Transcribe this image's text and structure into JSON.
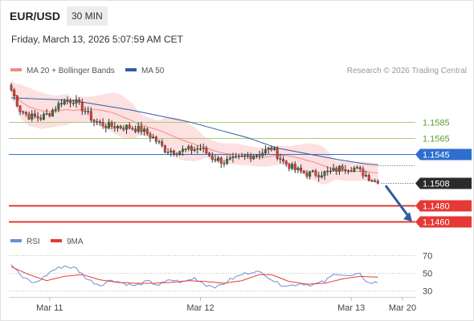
{
  "header": {
    "pair": "EUR/USD",
    "timeframe": "30 MIN",
    "datetime": "Friday, March 13, 2026 5:07:59 AM CET",
    "credit": "Research © 2026 Trading Central"
  },
  "colors": {
    "bull": "#2e7d32",
    "bear": "#e53935",
    "ma20": "#f48a84",
    "band": "#fde0e0",
    "ma50": "#2f5da6",
    "resistance": "#a5cf7a",
    "pivot": "#2f6ed1",
    "support": "#e53935",
    "arrow": "#2b5ea8",
    "rsi": "#6b8fd6",
    "rsi_ma": "#e53935"
  },
  "chart_data": [
    {
      "type": "candlestick",
      "title": "",
      "legend": [
        {
          "name": "MA 20 + Bollinger Bands",
          "color": "#f48a84"
        },
        {
          "name": "MA 50",
          "color": "#2f5da6"
        }
      ],
      "ylim": [
        1.1448,
        1.164
      ],
      "x_ticks": [
        "Mar 11",
        "Mar 12",
        "Mar 13",
        "Mar 20"
      ],
      "bars_per_day": 48,
      "close_path_points": [
        [
          0,
          1.1625
        ],
        [
          3,
          1.16
        ],
        [
          6,
          1.1592
        ],
        [
          10,
          1.159
        ],
        [
          13,
          1.1596
        ],
        [
          17,
          1.161
        ],
        [
          21,
          1.1612
        ],
        [
          24,
          1.1602
        ],
        [
          28,
          1.1586
        ],
        [
          32,
          1.158
        ],
        [
          36,
          1.1579
        ],
        [
          40,
          1.1578
        ],
        [
          44,
          1.1575
        ],
        [
          48,
          1.1565
        ],
        [
          52,
          1.155
        ],
        [
          56,
          1.1548
        ],
        [
          60,
          1.155
        ],
        [
          64,
          1.1552
        ],
        [
          68,
          1.154
        ],
        [
          72,
          1.1535
        ],
        [
          76,
          1.1538
        ],
        [
          80,
          1.1542
        ],
        [
          84,
          1.1545
        ],
        [
          88,
          1.1552
        ],
        [
          92,
          1.1535
        ],
        [
          96,
          1.1525
        ],
        [
          100,
          1.152
        ],
        [
          104,
          1.152
        ],
        [
          108,
          1.1522
        ],
        [
          112,
          1.1528
        ],
        [
          116,
          1.1527
        ],
        [
          120,
          1.1518
        ],
        [
          124,
          1.1508
        ]
      ],
      "ma50_points": [
        [
          0,
          1.1615
        ],
        [
          20,
          1.1612
        ],
        [
          40,
          1.16
        ],
        [
          60,
          1.1585
        ],
        [
          80,
          1.1565
        ],
        [
          90,
          1.1552
        ],
        [
          100,
          1.1545
        ],
        [
          110,
          1.1538
        ],
        [
          120,
          1.1532
        ],
        [
          124,
          1.1531
        ]
      ],
      "levels": [
        {
          "label": "1.1585",
          "value": 1.1585,
          "kind": "resistance"
        },
        {
          "label": "1.1565",
          "value": 1.1565,
          "kind": "resistance"
        },
        {
          "label": "1.1545",
          "value": 1.1545,
          "kind": "pivot"
        },
        {
          "label": "1.1508",
          "value": 1.1508,
          "kind": "last"
        },
        {
          "label": "1.1480",
          "value": 1.148,
          "kind": "support"
        },
        {
          "label": "1.1460",
          "value": 1.146,
          "kind": "support"
        }
      ],
      "forecast": {
        "from": 1.1508,
        "to": 1.146
      }
    },
    {
      "type": "line",
      "title": "",
      "legend": [
        {
          "name": "RSI",
          "color": "#6b8fd6"
        },
        {
          "name": "9MA",
          "color": "#e53935"
        }
      ],
      "ylim": [
        25,
        75
      ],
      "y_ticks": [
        70,
        50,
        30
      ],
      "rsi_points": [
        [
          0,
          60
        ],
        [
          4,
          44
        ],
        [
          8,
          38
        ],
        [
          11,
          45
        ],
        [
          14,
          53
        ],
        [
          18,
          58
        ],
        [
          22,
          55
        ],
        [
          26,
          42
        ],
        [
          30,
          36
        ],
        [
          34,
          42
        ],
        [
          38,
          38
        ],
        [
          42,
          35
        ],
        [
          46,
          40
        ],
        [
          50,
          36
        ],
        [
          54,
          42
        ],
        [
          58,
          39
        ],
        [
          62,
          44
        ],
        [
          66,
          36
        ],
        [
          70,
          34
        ],
        [
          74,
          42
        ],
        [
          78,
          48
        ],
        [
          82,
          52
        ],
        [
          86,
          48
        ],
        [
          90,
          38
        ],
        [
          94,
          35
        ],
        [
          98,
          38
        ],
        [
          102,
          36
        ],
        [
          106,
          40
        ],
        [
          110,
          50
        ],
        [
          114,
          46
        ],
        [
          118,
          48
        ],
        [
          121,
          38
        ],
        [
          124,
          39
        ]
      ],
      "ma_points": [
        [
          0,
          57
        ],
        [
          6,
          48
        ],
        [
          12,
          41
        ],
        [
          18,
          46
        ],
        [
          24,
          48
        ],
        [
          30,
          42
        ],
        [
          36,
          39
        ],
        [
          42,
          38
        ],
        [
          48,
          38
        ],
        [
          54,
          39
        ],
        [
          60,
          41
        ],
        [
          66,
          40
        ],
        [
          72,
          38
        ],
        [
          78,
          41
        ],
        [
          84,
          48
        ],
        [
          88,
          48
        ],
        [
          94,
          40
        ],
        [
          100,
          37
        ],
        [
          106,
          38
        ],
        [
          112,
          43
        ],
        [
          118,
          46
        ],
        [
          124,
          45
        ]
      ]
    }
  ]
}
